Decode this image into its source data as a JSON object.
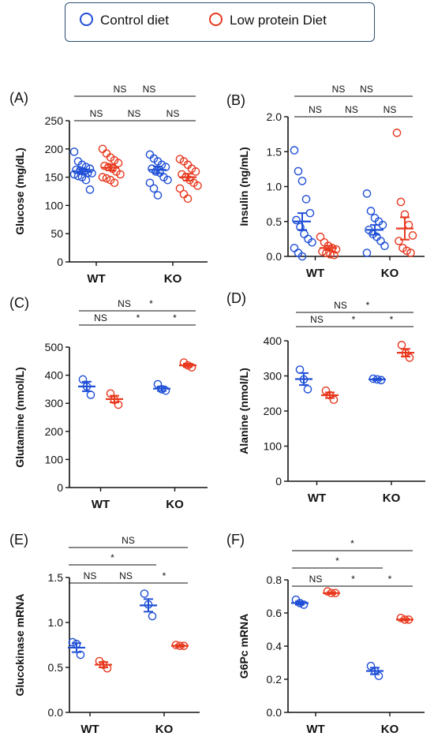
{
  "legend": {
    "control_label": "Control diet",
    "low_label": "Low protein Diet"
  },
  "colors": {
    "control": "#1f4fd6",
    "low": "#e8391f"
  },
  "chart_data": [
    {
      "type": "scatter",
      "panel_label": "(A)",
      "ylabel": "Glucose (mg/dL)",
      "ylim": [
        0,
        250
      ],
      "yticks": [
        "0",
        "50",
        "100",
        "150",
        "200",
        "250"
      ],
      "groups": [
        "WT",
        "KO"
      ],
      "series": [
        {
          "name": "Control diet",
          "values": {
            "WT": [
              195,
              178,
              172,
              168,
              165,
              163,
              162,
              160,
              158,
              157,
              155,
              152,
              150,
              145,
              128
            ],
            "KO": [
              190,
              183,
              178,
              172,
              168,
              165,
              160,
              158,
              150,
              145,
              140,
              130,
              118
            ]
          }
        },
        {
          "name": "Low protein Diet",
          "values": {
            "WT": [
              200,
              192,
              185,
              180,
              175,
              170,
              168,
              165,
              160,
              155,
              150,
              148,
              145,
              140
            ],
            "KO": [
              182,
              178,
              172,
              165,
              160,
              155,
              150,
              145,
              140,
              135,
              130,
              120,
              112
            ]
          }
        }
      ],
      "means": {
        "Control diet": {
          "WT": 160,
          "KO": 163
        },
        "Low protein Diet": {
          "WT": 167,
          "KO": 150
        }
      },
      "sems": {
        "Control diet": {
          "WT": 4,
          "KO": 6
        },
        "Low protein Diet": {
          "WT": 5,
          "KO": 6
        }
      },
      "comparisons": [
        {
          "label": "NS",
          "from": 0,
          "to": 1
        },
        {
          "label": "NS",
          "from": 1,
          "to": 2
        },
        {
          "label": "NS",
          "from": 2,
          "to": 3
        },
        {
          "label": "NS",
          "from": 0,
          "to": 2
        },
        {
          "label": "NS",
          "from": 1,
          "to": 3
        }
      ]
    },
    {
      "type": "scatter",
      "panel_label": "(B)",
      "ylabel": "Insulin (ng/mL)",
      "ylim": [
        0,
        2
      ],
      "yticks": [
        "0.0",
        "0.5",
        "1.0",
        "1.5",
        "2.0"
      ],
      "groups": [
        "WT",
        "KO"
      ],
      "series": [
        {
          "name": "Control diet",
          "values": {
            "WT": [
              1.52,
              1.22,
              1.08,
              0.82,
              0.62,
              0.52,
              0.42,
              0.32,
              0.25,
              0.2,
              0.12,
              0.05,
              0.0
            ],
            "KO": [
              0.9,
              0.65,
              0.55,
              0.5,
              0.45,
              0.38,
              0.32,
              0.28,
              0.22,
              0.15,
              0.05
            ]
          }
        },
        {
          "name": "Low protein Diet",
          "values": {
            "WT": [
              0.28,
              0.2,
              0.15,
              0.12,
              0.1,
              0.07,
              0.05,
              0.03,
              0.02
            ],
            "KO": [
              1.77,
              0.78,
              0.6,
              0.45,
              0.3,
              0.22,
              0.12,
              0.08,
              0.05
            ]
          }
        }
      ],
      "means": {
        "Control diet": {
          "WT": 0.5,
          "KO": 0.38
        },
        "Low protein Diet": {
          "WT": 0.12,
          "KO": 0.4
        }
      },
      "sems": {
        "Control diet": {
          "WT": 0.12,
          "KO": 0.07
        },
        "Low protein Diet": {
          "WT": 0.03,
          "KO": 0.16
        }
      },
      "comparisons": [
        {
          "label": "NS",
          "from": 0,
          "to": 1
        },
        {
          "label": "NS",
          "from": 1,
          "to": 2
        },
        {
          "label": "NS",
          "from": 2,
          "to": 3
        },
        {
          "label": "NS",
          "from": 0,
          "to": 2
        },
        {
          "label": "NS",
          "from": 1,
          "to": 3
        }
      ]
    },
    {
      "type": "scatter",
      "panel_label": "(C)",
      "ylabel": "Glutamine (nmol/L)",
      "ylim": [
        0,
        500
      ],
      "yticks": [
        "0",
        "100",
        "200",
        "300",
        "400",
        "500"
      ],
      "groups": [
        "WT",
        "KO"
      ],
      "series": [
        {
          "name": "Control diet",
          "values": {
            "WT": [
              385,
              360,
              330
            ],
            "KO": [
              368,
              350,
              345
            ]
          }
        },
        {
          "name": "Low protein Diet",
          "values": {
            "WT": [
              335,
              312,
              295
            ],
            "KO": [
              445,
              435,
              428
            ]
          }
        }
      ],
      "means": {
        "Control diet": {
          "WT": 360,
          "KO": 352
        },
        "Low protein Diet": {
          "WT": 315,
          "KO": 435
        }
      },
      "sems": {
        "Control diet": {
          "WT": 17,
          "KO": 8
        },
        "Low protein Diet": {
          "WT": 12,
          "KO": 6
        }
      },
      "comparisons": [
        {
          "label": "NS",
          "from": 0,
          "to": 1
        },
        {
          "label": "*",
          "from": 1,
          "to": 2
        },
        {
          "label": "*",
          "from": 2,
          "to": 3
        },
        {
          "label": "NS",
          "from": 0,
          "to": 2
        },
        {
          "label": "*",
          "from": 1,
          "to": 3
        }
      ]
    },
    {
      "type": "scatter",
      "panel_label": "(D)",
      "ylabel": "Alanine (nmol/L)",
      "ylim": [
        0,
        400
      ],
      "yticks": [
        "0",
        "100",
        "200",
        "300",
        "400"
      ],
      "groups": [
        "WT",
        "KO"
      ],
      "series": [
        {
          "name": "Control diet",
          "values": {
            "WT": [
              318,
              290,
              262
            ],
            "KO": [
              292,
              290,
              288
            ]
          }
        },
        {
          "name": "Low protein Diet",
          "values": {
            "WT": [
              258,
              245,
              232
            ],
            "KO": [
              388,
              365,
              352
            ]
          }
        }
      ],
      "means": {
        "Control diet": {
          "WT": 291,
          "KO": 290
        },
        "Low protein Diet": {
          "WT": 245,
          "KO": 366
        }
      },
      "sems": {
        "Control diet": {
          "WT": 17,
          "KO": 2
        },
        "Low protein Diet": {
          "WT": 8,
          "KO": 11
        }
      },
      "comparisons": [
        {
          "label": "NS",
          "from": 0,
          "to": 1
        },
        {
          "label": "*",
          "from": 1,
          "to": 2
        },
        {
          "label": "*",
          "from": 2,
          "to": 3
        },
        {
          "label": "NS",
          "from": 0,
          "to": 2
        },
        {
          "label": "*",
          "from": 1,
          "to": 3
        }
      ]
    },
    {
      "type": "scatter",
      "panel_label": "(E)",
      "ylabel": "Glucokinase mRNA",
      "ylim": [
        0,
        1.5
      ],
      "yticks": [
        "0.0",
        "0.5",
        "1.0",
        "1.5"
      ],
      "groups": [
        "WT",
        "KO"
      ],
      "series": [
        {
          "name": "Control diet",
          "values": {
            "WT": [
              0.78,
              0.76,
              0.64
            ],
            "KO": [
              1.32,
              1.2,
              1.07
            ]
          }
        },
        {
          "name": "Low protein Diet",
          "values": {
            "WT": [
              0.57,
              0.53,
              0.49
            ],
            "KO": [
              0.75,
              0.74,
              0.74
            ]
          }
        }
      ],
      "means": {
        "Control diet": {
          "WT": 0.72,
          "KO": 1.19
        },
        "Low protein Diet": {
          "WT": 0.53,
          "KO": 0.74
        }
      },
      "sems": {
        "Control diet": {
          "WT": 0.05,
          "KO": 0.07
        },
        "Low protein Diet": {
          "WT": 0.03,
          "KO": 0.01
        }
      },
      "comparisons": [
        {
          "label": "NS",
          "from": 0,
          "to": 1
        },
        {
          "label": "NS",
          "from": 1,
          "to": 2
        },
        {
          "label": "*",
          "from": 2,
          "to": 3
        },
        {
          "label": "*",
          "from": 0,
          "to": 2
        },
        {
          "label": "NS",
          "from": 0,
          "to": 3
        }
      ]
    },
    {
      "type": "scatter",
      "panel_label": "(F)",
      "ylabel": "G6Pc mRNA",
      "ylim": [
        0,
        0.8
      ],
      "yticks": [
        "0.0",
        "0.2",
        "0.4",
        "0.6",
        "0.8"
      ],
      "groups": [
        "WT",
        "KO"
      ],
      "series": [
        {
          "name": "Control diet",
          "values": {
            "WT": [
              0.68,
              0.66,
              0.65
            ],
            "KO": [
              0.28,
              0.25,
              0.22
            ]
          }
        },
        {
          "name": "Low protein Diet",
          "values": {
            "WT": [
              0.73,
              0.72,
              0.72
            ],
            "KO": [
              0.57,
              0.56,
              0.56
            ]
          }
        }
      ],
      "means": {
        "Control diet": {
          "WT": 0.66,
          "KO": 0.25
        },
        "Low protein Diet": {
          "WT": 0.72,
          "KO": 0.56
        }
      },
      "sems": {
        "Control diet": {
          "WT": 0.01,
          "KO": 0.02
        },
        "Low protein Diet": {
          "WT": 0.005,
          "KO": 0.005
        }
      },
      "comparisons": [
        {
          "label": "NS",
          "from": 0,
          "to": 1
        },
        {
          "label": "*",
          "from": 1,
          "to": 2
        },
        {
          "label": "*",
          "from": 2,
          "to": 3
        },
        {
          "label": "*",
          "from": 0,
          "to": 2
        },
        {
          "label": "*",
          "from": 0,
          "to": 3
        }
      ]
    }
  ]
}
